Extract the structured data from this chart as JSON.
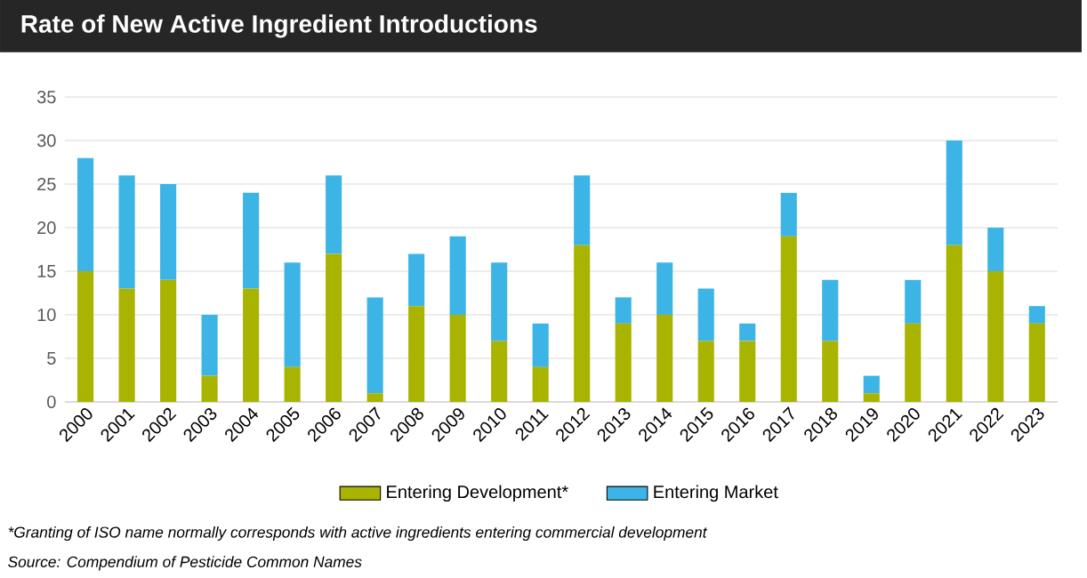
{
  "chart_data": {
    "type": "bar",
    "title": "Rate of New Active Ingredient Introductions",
    "categories": [
      "2000",
      "2001",
      "2002",
      "2003",
      "2004",
      "2005",
      "2006",
      "2007",
      "2008",
      "2009",
      "2010",
      "2011",
      "2012",
      "2013",
      "2014",
      "2015",
      "2016",
      "2017",
      "2018",
      "2019",
      "2020",
      "2021",
      "2022",
      "2023"
    ],
    "series": [
      {
        "name": "Entering Development*",
        "color": "#a9b400",
        "values": [
          15,
          13,
          14,
          3,
          13,
          4,
          17,
          1,
          11,
          10,
          7,
          4,
          18,
          9,
          10,
          7,
          7,
          19,
          7,
          1,
          9,
          18,
          15,
          9
        ]
      },
      {
        "name": "Entering Market",
        "color": "#3db4e6",
        "values": [
          13,
          13,
          11,
          7,
          11,
          12,
          9,
          11,
          6,
          9,
          9,
          5,
          8,
          3,
          6,
          6,
          2,
          5,
          7,
          2,
          5,
          12,
          5,
          2
        ]
      }
    ],
    "stacked": true,
    "ylim": [
      0,
      35
    ],
    "yticks": [
      0,
      5,
      10,
      15,
      20,
      25,
      30,
      35
    ],
    "grid": "y",
    "legend": "bottom",
    "annotations": [
      "*Granting of ISO name normally corresponds with active ingredients entering commercial development",
      "Source: Compendium of Pesticide Common Names"
    ]
  }
}
